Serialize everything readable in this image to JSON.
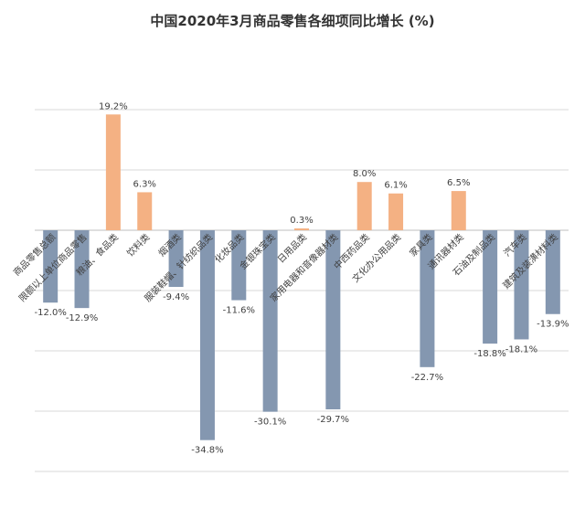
{
  "colors": {
    "positive": "#F4B183",
    "negative": "#8497B0"
  },
  "chart_data": {
    "type": "bar",
    "title": "中国2020年3月商品零售各细项同比增长 (%)",
    "xlabel": "",
    "ylabel": "",
    "ylim": [
      -40,
      25
    ],
    "grid": true,
    "categories": [
      "商品零售总额",
      "限额以上单位商品零售",
      "粮油、食品类",
      "饮料类",
      "烟酒类",
      "服装鞋帽、针纺织品类",
      "化妆品类",
      "金银珠宝类",
      "日用品类",
      "家用电器和音像器材类",
      "中西药品类",
      "文化办公用品类",
      "家具类",
      "通讯器材类",
      "石油及制品类",
      "汽车类",
      "建筑及装潢材料类"
    ],
    "values": [
      -12.0,
      -12.9,
      19.2,
      6.3,
      -9.4,
      -34.8,
      -11.6,
      -30.1,
      0.3,
      -29.7,
      8.0,
      6.1,
      -22.7,
      6.5,
      -18.8,
      -18.1,
      -13.9
    ],
    "data_labels": [
      "-12.0%",
      "-12.9%",
      "19.2%",
      "6.3%",
      "-9.4%",
      "-34.8%",
      "-11.6%",
      "-30.1%",
      "0.3%",
      "-29.7%",
      "8.0%",
      "6.1%",
      "-22.7%",
      "6.5%",
      "-18.8%",
      "-18.1%",
      "-13.9%"
    ]
  }
}
